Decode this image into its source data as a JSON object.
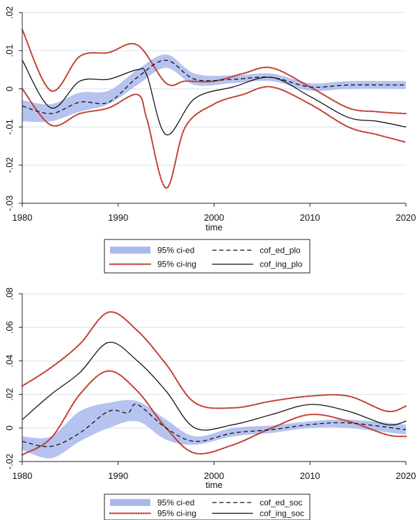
{
  "chart_data": [
    {
      "type": "line",
      "xlabel": "time",
      "ylabel": "",
      "xlim": [
        1980,
        2020
      ],
      "ylim": [
        -0.03,
        0.02
      ],
      "xticks": [
        1980,
        1990,
        2000,
        2010,
        2020
      ],
      "xtick_labels": [
        "1980",
        "1990",
        "2000",
        "2010",
        "2020"
      ],
      "yticks": [
        -0.03,
        -0.02,
        -0.01,
        0,
        0.01,
        0.02
      ],
      "ytick_labels": [
        "-.03",
        "-.02",
        "-.01",
        "0",
        ".01",
        ".02"
      ],
      "grid": true,
      "legend_position": "bottom",
      "band": {
        "name": "95% ci-ed",
        "color": "#a9b9ec",
        "x": [
          1980,
          1983,
          1986,
          1989,
          1992,
          1995,
          1998,
          2002,
          2006,
          2010,
          2014,
          2020
        ],
        "lower": [
          -0.0085,
          -0.0085,
          -0.006,
          -0.004,
          0.001,
          0.0055,
          0.001,
          0.0015,
          0.002,
          -0.0005,
          0.0,
          0.0
        ],
        "upper": [
          -0.003,
          -0.004,
          -0.001,
          -0.0005,
          0.005,
          0.009,
          0.004,
          0.0035,
          0.004,
          0.0015,
          0.002,
          0.002
        ]
      },
      "series": [
        {
          "name": "95% ci-ing",
          "style": "dotted",
          "color": "#c0392b",
          "lines": [
            {
              "x": [
                1980,
                1983,
                1986,
                1989,
                1992,
                1995,
                1997,
                2000,
                2003,
                2006,
                2010,
                2014,
                2017,
                2020
              ],
              "y": [
                0.0155,
                -0.0005,
                0.0085,
                0.0095,
                0.0115,
                0.0015,
                0.002,
                0.002,
                0.004,
                0.0055,
                0.0005,
                -0.005,
                -0.006,
                -0.0065
              ]
            },
            {
              "x": [
                1980,
                1983,
                1986,
                1989,
                1992,
                1993,
                1995,
                1997,
                2000,
                2003,
                2006,
                2010,
                2014,
                2017,
                2020
              ],
              "y": [
                0.0,
                -0.0095,
                -0.0065,
                -0.005,
                -0.0015,
                -0.008,
                -0.026,
                -0.01,
                -0.004,
                -0.0015,
                0.0005,
                -0.004,
                -0.01,
                -0.012,
                -0.014
              ]
            }
          ]
        },
        {
          "name": "cof_ed_plo",
          "style": "dashed",
          "color": "#111111",
          "lines": [
            {
              "x": [
                1980,
                1983,
                1986,
                1989,
                1992,
                1995,
                1998,
                2002,
                2006,
                2010,
                2014,
                2020
              ],
              "y": [
                -0.0045,
                -0.0065,
                -0.0035,
                -0.0035,
                0.003,
                0.0075,
                0.0025,
                0.0025,
                0.003,
                0.0005,
                0.001,
                0.001
              ]
            }
          ]
        },
        {
          "name": "cof_ing_plo",
          "style": "solid",
          "color": "#111111",
          "lines": [
            {
              "x": [
                1980,
                1983,
                1986,
                1989,
                1992,
                1993,
                1995,
                1998,
                2002,
                2006,
                2010,
                2014,
                2017,
                2020
              ],
              "y": [
                0.0075,
                -0.005,
                0.002,
                0.0025,
                0.005,
                0.0035,
                -0.012,
                -0.0025,
                0.0005,
                0.003,
                -0.002,
                -0.0075,
                -0.0085,
                -0.01
              ]
            }
          ]
        }
      ]
    },
    {
      "type": "line",
      "xlabel": "time",
      "ylabel": "",
      "xlim": [
        1980,
        2020
      ],
      "ylim": [
        -0.02,
        0.08
      ],
      "xticks": [
        1980,
        1990,
        2000,
        2010,
        2020
      ],
      "xtick_labels": [
        "1980",
        "1990",
        "2000",
        "2010",
        "2020"
      ],
      "yticks": [
        -0.02,
        0,
        0.02,
        0.04,
        0.06,
        0.08
      ],
      "ytick_labels": [
        "-.02",
        "0",
        ".02",
        ".04",
        ".06",
        ".08"
      ],
      "grid": true,
      "legend_position": "bottom",
      "band": {
        "name": "95% ci-ed",
        "color": "#a9b9ec",
        "x": [
          1980,
          1983,
          1986,
          1989,
          1992,
          1995,
          1998,
          2002,
          2006,
          2010,
          2014,
          2020
        ],
        "lower": [
          -0.013,
          -0.018,
          -0.008,
          0.0,
          0.004,
          -0.007,
          -0.01,
          -0.005,
          -0.003,
          0.0,
          0.0,
          -0.004
        ],
        "upper": [
          -0.005,
          -0.005,
          0.01,
          0.015,
          0.016,
          0.005,
          -0.005,
          0.0,
          0.0015,
          0.004,
          0.005,
          0.002
        ]
      },
      "series": [
        {
          "name": "95% ci-ing",
          "style": "dotted",
          "color": "#c0392b",
          "lines": [
            {
              "x": [
                1980,
                1983,
                1986,
                1989,
                1992,
                1995,
                1998,
                2002,
                2006,
                2010,
                2014,
                2018,
                2020
              ],
              "y": [
                0.025,
                0.036,
                0.05,
                0.069,
                0.058,
                0.038,
                0.015,
                0.012,
                0.016,
                0.019,
                0.019,
                0.01,
                0.013
              ]
            },
            {
              "x": [
                1980,
                1983,
                1986,
                1989,
                1992,
                1995,
                1998,
                2002,
                2006,
                2010,
                2014,
                2018,
                2020
              ],
              "y": [
                -0.016,
                -0.006,
                0.02,
                0.034,
                0.022,
                0.0,
                -0.015,
                -0.01,
                0.0,
                0.008,
                0.004,
                -0.004,
                -0.005
              ]
            }
          ]
        },
        {
          "name": "cof_ed_soc",
          "style": "dashed",
          "color": "#111111",
          "lines": [
            {
              "x": [
                1980,
                1983,
                1986,
                1989,
                1991,
                1992,
                1995,
                1998,
                2002,
                2006,
                2010,
                2014,
                2020
              ],
              "y": [
                -0.008,
                -0.011,
                -0.003,
                0.01,
                0.009,
                0.014,
                0.0,
                -0.008,
                -0.003,
                -0.001,
                0.002,
                0.003,
                -0.001
              ]
            }
          ]
        },
        {
          "name": "cof_ing_soc",
          "style": "solid",
          "color": "#111111",
          "lines": [
            {
              "x": [
                1980,
                1983,
                1986,
                1989,
                1992,
                1995,
                1998,
                2002,
                2006,
                2010,
                2014,
                2018,
                2020
              ],
              "y": [
                0.005,
                0.02,
                0.033,
                0.051,
                0.04,
                0.022,
                0.0,
                0.002,
                0.008,
                0.014,
                0.01,
                0.002,
                0.004
              ]
            }
          ]
        }
      ]
    }
  ]
}
